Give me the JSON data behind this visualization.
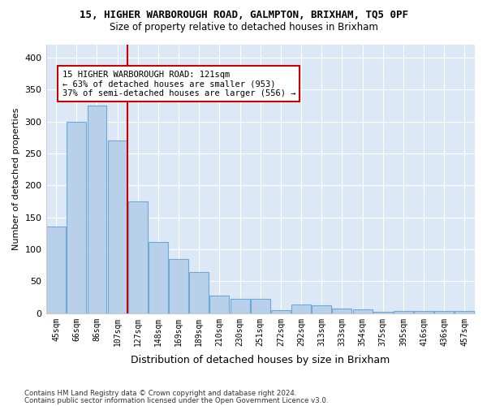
{
  "title": "15, HIGHER WARBOROUGH ROAD, GALMPTON, BRIXHAM, TQ5 0PF",
  "subtitle": "Size of property relative to detached houses in Brixham",
  "xlabel": "Distribution of detached houses by size in Brixham",
  "ylabel": "Number of detached properties",
  "footnote1": "Contains HM Land Registry data © Crown copyright and database right 2024.",
  "footnote2": "Contains public sector information licensed under the Open Government Licence v3.0.",
  "bar_color": "#b8d0ea",
  "bar_edge_color": "#6aaad4",
  "background_color": "#dce8f5",
  "bins": [
    "45sqm",
    "66sqm",
    "86sqm",
    "107sqm",
    "127sqm",
    "148sqm",
    "169sqm",
    "189sqm",
    "210sqm",
    "230sqm",
    "251sqm",
    "272sqm",
    "292sqm",
    "313sqm",
    "333sqm",
    "354sqm",
    "375sqm",
    "395sqm",
    "416sqm",
    "436sqm",
    "457sqm"
  ],
  "values": [
    135,
    300,
    325,
    270,
    175,
    112,
    85,
    65,
    28,
    22,
    23,
    5,
    14,
    13,
    7,
    6,
    2,
    4,
    3,
    3,
    3
  ],
  "vline_x": 3.5,
  "annotation_text": "15 HIGHER WARBOROUGH ROAD: 121sqm\n← 63% of detached houses are smaller (953)\n37% of semi-detached houses are larger (556) →",
  "annotation_box_color": "#ffffff",
  "annotation_box_edge": "#cc0000",
  "vline_color": "#cc0000",
  "ylim": [
    0,
    420
  ],
  "yticks": [
    0,
    50,
    100,
    150,
    200,
    250,
    300,
    350,
    400
  ]
}
